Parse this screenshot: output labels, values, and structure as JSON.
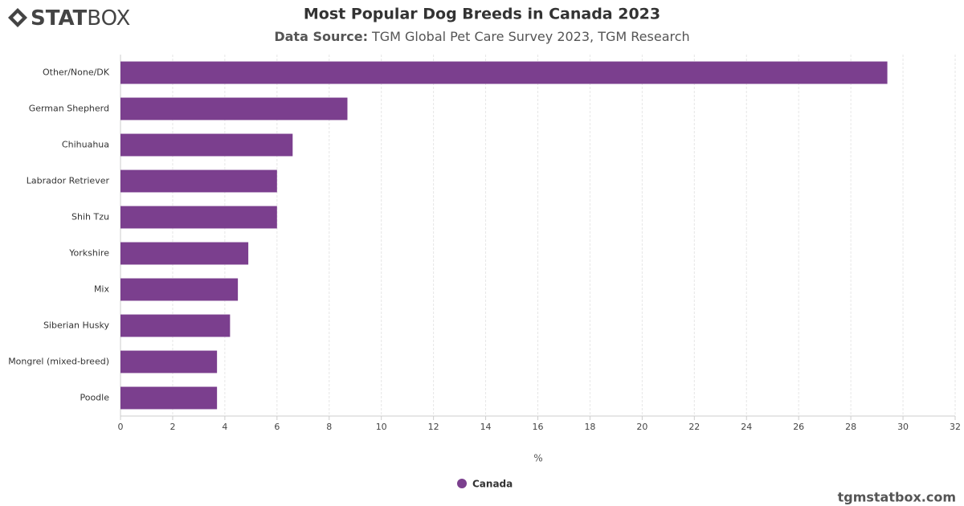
{
  "logo": {
    "bold": "STAT",
    "light": "BOX"
  },
  "footer": "tgmstatbox.com",
  "chart_data": {
    "type": "bar",
    "orientation": "horizontal",
    "title": "Most Popular Dog Breeds in Canada 2023",
    "subtitle_label": "Data Source:",
    "subtitle": "TGM Global Pet Care Survey 2023, TGM Research",
    "x_label": "%",
    "categories": [
      "Other/None/DK",
      "German Shepherd",
      "Chihuahua",
      "Labrador Retriever",
      "Shih Tzu",
      "Yorkshire",
      "Mix",
      "Siberian Husky",
      "Mongrel (mixed-breed)",
      "Poodle"
    ],
    "series": [
      {
        "name": "Canada",
        "color": "#7b3f8e",
        "values": [
          29.4,
          8.7,
          6.6,
          6.0,
          6.0,
          4.9,
          4.5,
          4.2,
          3.7,
          3.7
        ]
      }
    ],
    "xlim": [
      0,
      32
    ],
    "xticks": [
      0,
      2,
      4,
      6,
      8,
      10,
      12,
      14,
      16,
      18,
      20,
      22,
      24,
      26,
      28,
      30,
      32
    ],
    "grid": true,
    "legend": "bottom"
  }
}
